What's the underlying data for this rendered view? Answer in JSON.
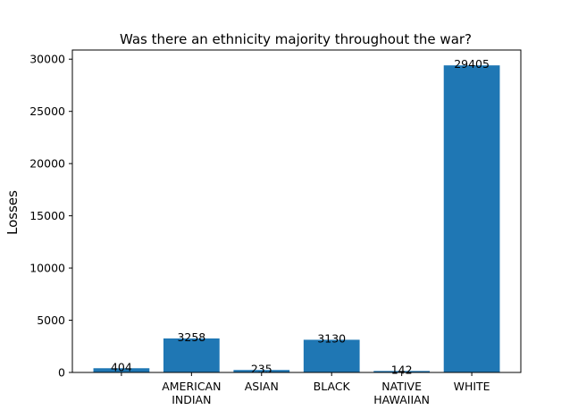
{
  "chart_data": {
    "type": "bar",
    "title": "Was there an ethnicity majority throughout the war?",
    "xlabel": "",
    "ylabel": "Losses",
    "categories": [
      [
        ""
      ],
      [
        "AMERICAN",
        "INDIAN"
      ],
      [
        "ASIAN"
      ],
      [
        "BLACK"
      ],
      [
        "NATIVE",
        "HAWAIIAN"
      ],
      [
        "WHITE"
      ]
    ],
    "values": [
      404,
      3258,
      235,
      3130,
      142,
      29405
    ],
    "data_labels": [
      "404",
      "3258",
      "235",
      "3130",
      "142",
      "29405"
    ],
    "ylim": [
      0,
      30875
    ],
    "yticks": [
      0,
      5000,
      10000,
      15000,
      20000,
      25000,
      30000
    ],
    "ytick_labels": [
      "0",
      "5000",
      "10000",
      "15000",
      "20000",
      "25000",
      "30000"
    ],
    "bar_color": "#1f77b4",
    "grid": false,
    "legend": "none"
  }
}
